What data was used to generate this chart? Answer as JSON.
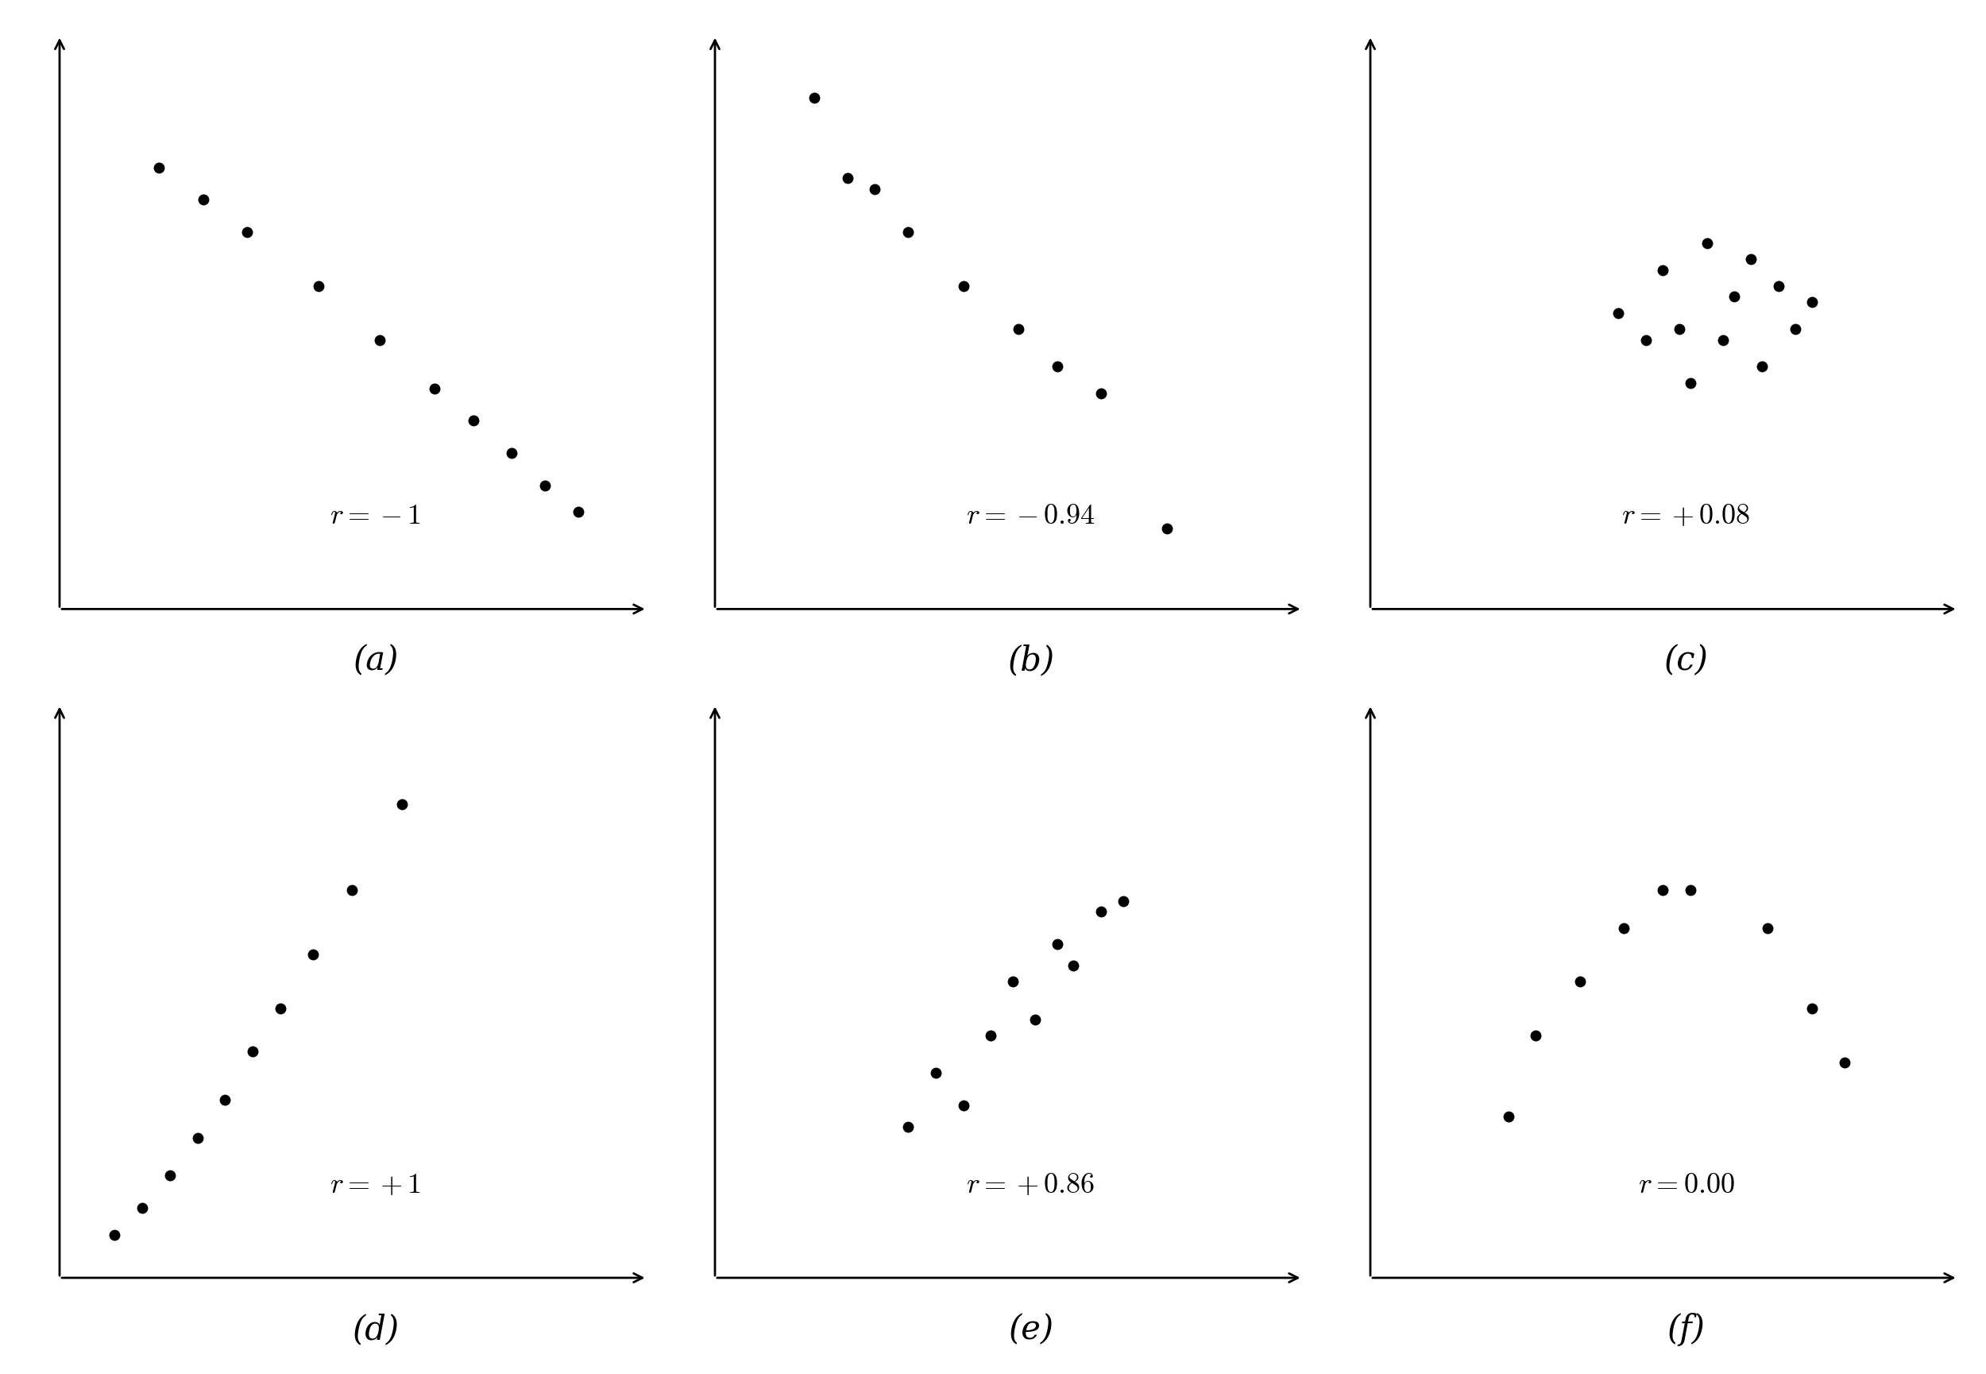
{
  "background_color": "#ffffff",
  "dot_color": "#000000",
  "dot_size": 100,
  "arrow_lw": 2.0,
  "arrow_ms": 20,
  "r_fontsize": 26,
  "label_fontsize": 30,
  "xlim": [
    0,
    10.8
  ],
  "ylim": [
    0,
    10.8
  ],
  "subplots": [
    {
      "label": "(a)",
      "r_text": "$r = -1$",
      "x": [
        1.8,
        2.6,
        3.4,
        4.7,
        5.8,
        6.8,
        7.5,
        8.2,
        8.8,
        9.4
      ],
      "y": [
        8.2,
        7.6,
        7.0,
        6.0,
        5.0,
        4.1,
        3.5,
        2.9,
        2.3,
        1.8
      ]
    },
    {
      "label": "(b)",
      "r_text": "$r = -0.94$",
      "x": [
        1.8,
        2.4,
        2.9,
        3.5,
        4.5,
        5.5,
        6.2,
        7.0,
        8.2
      ],
      "y": [
        9.5,
        8.0,
        7.8,
        7.0,
        6.0,
        5.2,
        4.5,
        4.0,
        1.5
      ]
    },
    {
      "label": "(c)",
      "r_text": "$r = +0.08$",
      "x": [
        4.5,
        5.0,
        5.3,
        5.6,
        5.8,
        6.1,
        6.4,
        6.6,
        6.9,
        7.1,
        7.4,
        7.7,
        8.0
      ],
      "y": [
        5.5,
        5.0,
        6.3,
        5.2,
        4.2,
        6.8,
        5.0,
        5.8,
        6.5,
        4.5,
        6.0,
        5.2,
        5.7
      ]
    },
    {
      "label": "(d)",
      "r_text": "$r = +1$",
      "x": [
        1.0,
        1.5,
        2.0,
        2.5,
        3.0,
        3.5,
        4.0,
        4.6,
        5.3,
        6.2
      ],
      "y": [
        0.8,
        1.3,
        1.9,
        2.6,
        3.3,
        4.2,
        5.0,
        6.0,
        7.2,
        8.8
      ]
    },
    {
      "label": "(e)",
      "r_text": "$r = +0.86$",
      "x": [
        3.5,
        4.0,
        4.5,
        5.0,
        5.4,
        5.8,
        6.2,
        6.5,
        7.0,
        7.4
      ],
      "y": [
        2.8,
        3.8,
        3.2,
        4.5,
        5.5,
        4.8,
        6.2,
        5.8,
        6.8,
        7.0
      ]
    },
    {
      "label": "(f)",
      "r_text": "$r = 0.00$",
      "x": [
        2.5,
        3.0,
        3.8,
        4.6,
        5.3,
        5.8,
        7.2,
        8.0,
        8.6
      ],
      "y": [
        3.0,
        4.5,
        5.5,
        6.5,
        7.2,
        7.2,
        6.5,
        5.0,
        4.0
      ]
    }
  ]
}
